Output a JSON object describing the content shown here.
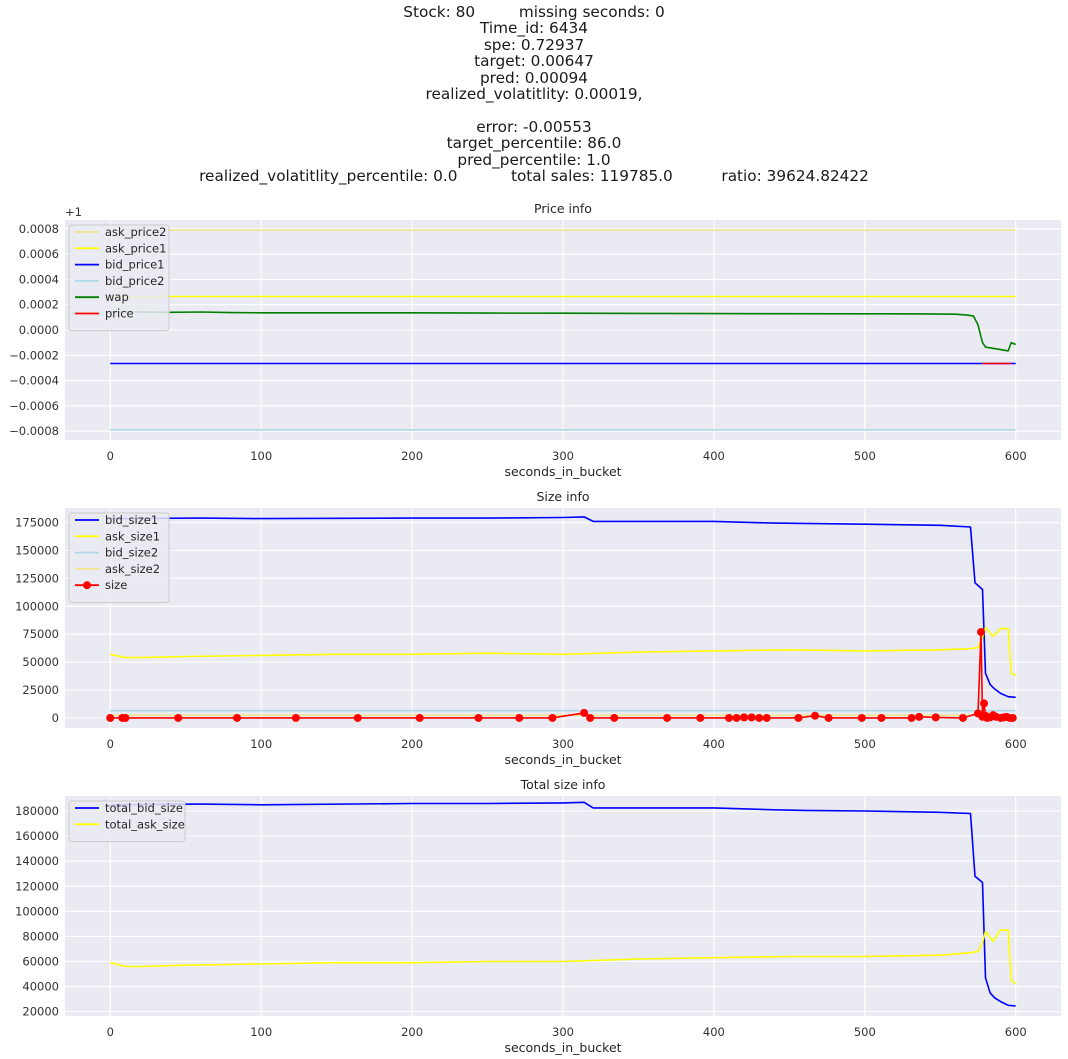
{
  "header": {
    "lines": [
      "Stock: 80         missing seconds: 0",
      "Time_id: 6434",
      "spe: 0.72937",
      "target: 0.00647",
      "pred: 0.00094",
      "realized_volatitlity: 0.00019,",
      "",
      "error: -0.00553",
      "target_percentile: 86.0",
      "pred_percentile: 1.0",
      "realized_volatitlity_percentile: 0.0           total sales: 119785.0          ratio: 39624.82422"
    ]
  },
  "chart_data": [
    {
      "type": "line",
      "title": "Price info",
      "xlabel": "seconds_in_bucket",
      "ylabel": "",
      "offset_label": "+1",
      "xlim": [
        -30,
        630
      ],
      "ylim": [
        -0.00087,
        0.00087
      ],
      "xticks": [
        0,
        100,
        200,
        300,
        400,
        500,
        600
      ],
      "yticks": [
        -0.0008,
        -0.0006,
        -0.0004,
        -0.0002,
        0.0,
        0.0002,
        0.0004,
        0.0006,
        0.0008
      ],
      "ytick_labels": [
        "−0.0008",
        "−0.0006",
        "−0.0004",
        "−0.0002",
        "0.0000",
        "0.0002",
        "0.0004",
        "0.0006",
        "0.0008"
      ],
      "grid": true,
      "legend": "upper-left",
      "series": [
        {
          "name": "ask_price2",
          "color": "#f0e68c",
          "x": [
            0,
            600
          ],
          "y": [
            0.00079,
            0.00079
          ]
        },
        {
          "name": "ask_price1",
          "color": "#ffff00",
          "x": [
            0,
            600
          ],
          "y": [
            0.000265,
            0.000265
          ]
        },
        {
          "name": "bid_price1",
          "color": "#0000ff",
          "x": [
            0,
            600
          ],
          "y": [
            -0.000265,
            -0.000265
          ]
        },
        {
          "name": "bid_price2",
          "color": "#add8e6",
          "x": [
            0,
            600
          ],
          "y": [
            -0.00079,
            -0.00079
          ]
        },
        {
          "name": "wap",
          "color": "#008000",
          "x": [
            0,
            20,
            40,
            60,
            80,
            100,
            150,
            200,
            250,
            300,
            350,
            400,
            450,
            500,
            540,
            560,
            568,
            572,
            575,
            578,
            580,
            585,
            590,
            595,
            597,
            600
          ],
          "y": [
            0.000145,
            0.000142,
            0.00014,
            0.000142,
            0.000138,
            0.000136,
            0.000136,
            0.000136,
            0.000134,
            0.000133,
            0.000131,
            0.00013,
            0.000129,
            0.000128,
            0.000127,
            0.000125,
            0.000118,
            0.00011,
            4e-05,
            -0.0001,
            -0.000135,
            -0.000145,
            -0.000155,
            -0.000165,
            -0.0001,
            -0.000115
          ]
        },
        {
          "name": "price",
          "color": "#ff0000",
          "x": [
            578,
            597
          ],
          "y": [
            -0.000265,
            -0.000265
          ]
        }
      ]
    },
    {
      "type": "line",
      "title": "Size info",
      "xlabel": "seconds_in_bucket",
      "ylabel": "",
      "xlim": [
        -30,
        630
      ],
      "ylim": [
        -9000,
        188000
      ],
      "xticks": [
        0,
        100,
        200,
        300,
        400,
        500,
        600
      ],
      "yticks": [
        0,
        25000,
        50000,
        75000,
        100000,
        125000,
        150000,
        175000
      ],
      "ytick_labels": [
        "0",
        "25000",
        "50000",
        "75000",
        "100000",
        "125000",
        "150000",
        "175000"
      ],
      "grid": true,
      "legend": "upper-left",
      "series": [
        {
          "name": "bid_size1",
          "color": "#0000ff",
          "x": [
            0,
            60,
            100,
            200,
            250,
            300,
            314,
            320,
            400,
            440,
            500,
            550,
            570,
            573,
            578,
            580,
            583,
            586,
            590,
            595,
            600
          ],
          "y": [
            178500,
            179000,
            178500,
            179000,
            179000,
            179500,
            180000,
            176000,
            176000,
            174500,
            173500,
            172500,
            171000,
            121000,
            115000,
            40000,
            30000,
            26000,
            22000,
            19000,
            18500
          ]
        },
        {
          "name": "ask_size1",
          "color": "#ffff00",
          "x": [
            0,
            10,
            20,
            50,
            100,
            150,
            200,
            250,
            300,
            350,
            400,
            450,
            500,
            550,
            570,
            575,
            578,
            580,
            585,
            590,
            595,
            597,
            600
          ],
          "y": [
            57000,
            54000,
            54000,
            55000,
            56000,
            57000,
            57000,
            58000,
            57000,
            59000,
            60000,
            61000,
            60000,
            61000,
            62000,
            63000,
            72000,
            81000,
            73000,
            80000,
            80000,
            40000,
            38000
          ]
        },
        {
          "name": "bid_size2",
          "color": "#add8e6",
          "x": [
            0,
            600
          ],
          "y": [
            6500,
            6500
          ]
        },
        {
          "name": "ask_size2",
          "color": "#f0e68c",
          "x": [
            0,
            600
          ],
          "y": [
            2500,
            2500
          ]
        },
        {
          "name": "size",
          "color": "#ff0000",
          "marker": "o",
          "x": [
            0,
            8,
            10,
            45,
            84,
            123,
            164,
            205,
            244,
            271,
            293,
            314,
            318,
            334,
            369,
            391,
            410,
            415,
            420,
            425,
            430,
            435,
            456,
            467,
            476,
            498,
            511,
            531,
            536,
            547,
            565,
            575,
            577,
            578,
            579,
            580,
            581,
            583,
            585,
            587,
            590,
            592,
            594,
            596,
            598
          ],
          "y": [
            0,
            0,
            0,
            0,
            0,
            0,
            0,
            0,
            0,
            0,
            0,
            4500,
            0,
            0,
            0,
            0,
            0,
            0,
            500,
            500,
            0,
            0,
            0,
            2000,
            0,
            0,
            0,
            0,
            1000,
            500,
            0,
            4000,
            77000,
            1000,
            13000,
            2000,
            0,
            500,
            2500,
            1000,
            0,
            500,
            1000,
            0,
            0
          ]
        }
      ]
    },
    {
      "type": "line",
      "title": "Total size info",
      "xlabel": "seconds_in_bucket",
      "ylabel": "",
      "xlim": [
        -30,
        630
      ],
      "ylim": [
        16500,
        192000
      ],
      "xticks": [
        0,
        100,
        200,
        300,
        400,
        500,
        600
      ],
      "yticks": [
        20000,
        40000,
        60000,
        80000,
        100000,
        120000,
        140000,
        160000,
        180000
      ],
      "ytick_labels": [
        "20000",
        "40000",
        "60000",
        "80000",
        "100000",
        "120000",
        "140000",
        "160000",
        "180000"
      ],
      "grid": true,
      "legend": "upper-left",
      "series": [
        {
          "name": "total_bid_size",
          "color": "#0000ff",
          "x": [
            0,
            60,
            100,
            200,
            250,
            300,
            314,
            320,
            400,
            440,
            460,
            500,
            550,
            570,
            573,
            578,
            580,
            583,
            586,
            590,
            595,
            600
          ],
          "y": [
            185000,
            185500,
            185000,
            186000,
            186000,
            186500,
            187000,
            182500,
            182500,
            181000,
            180500,
            180000,
            179000,
            178000,
            128000,
            123000,
            47000,
            35000,
            31000,
            28000,
            25000,
            24500
          ]
        },
        {
          "name": "total_ask_size",
          "color": "#ffff00",
          "x": [
            0,
            10,
            20,
            50,
            100,
            150,
            200,
            250,
            300,
            350,
            400,
            450,
            500,
            550,
            570,
            575,
            578,
            580,
            585,
            590,
            595,
            597,
            600
          ],
          "y": [
            59000,
            56000,
            56000,
            57000,
            58000,
            59000,
            59000,
            60000,
            60000,
            62000,
            63000,
            64000,
            64000,
            65000,
            67000,
            68000,
            75000,
            84000,
            76000,
            85000,
            85000,
            45000,
            42000
          ]
        }
      ]
    }
  ]
}
